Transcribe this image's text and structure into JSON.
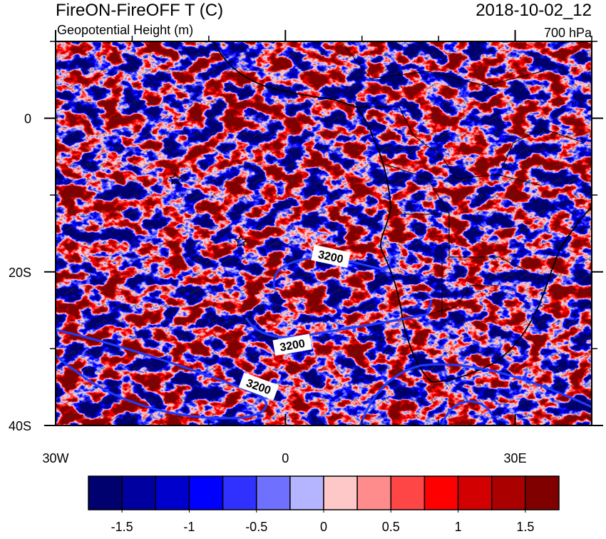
{
  "header": {
    "title": "FireON-FireOFF T (C)",
    "subtitle": "Geopotential Height (m)",
    "date": "2018-10-02_12",
    "level": "700 hPa"
  },
  "map": {
    "xlim": [
      -30,
      40
    ],
    "ylim": [
      -40,
      10
    ],
    "xticks": [
      {
        "value": -30,
        "label": "30W"
      },
      0,
      {
        "value": 30,
        "label": "30E"
      }
    ],
    "yticks": [
      0,
      {
        "value": -20,
        "label": "20S"
      },
      {
        "value": -40,
        "label": "40S"
      }
    ],
    "xminor_ticks": [
      -20,
      -10,
      10,
      20,
      40
    ],
    "yminor_ticks": [
      10,
      -10,
      -30
    ],
    "contour_labels": [
      "3200",
      "3200",
      "3200"
    ]
  },
  "colorbar": {
    "range": [
      -1.75,
      1.75
    ],
    "colors": [
      "#00006e",
      "#0000a0",
      "#0000cd",
      "#0000ff",
      "#3030ff",
      "#7070ff",
      "#b4b4ff",
      "#ffc8c8",
      "#ff8c8c",
      "#ff4646",
      "#ff0000",
      "#d20000",
      "#aa0000",
      "#800000"
    ],
    "ticks": [
      -1.5,
      -1,
      -0.5,
      0,
      0.5,
      1,
      1.5
    ]
  }
}
